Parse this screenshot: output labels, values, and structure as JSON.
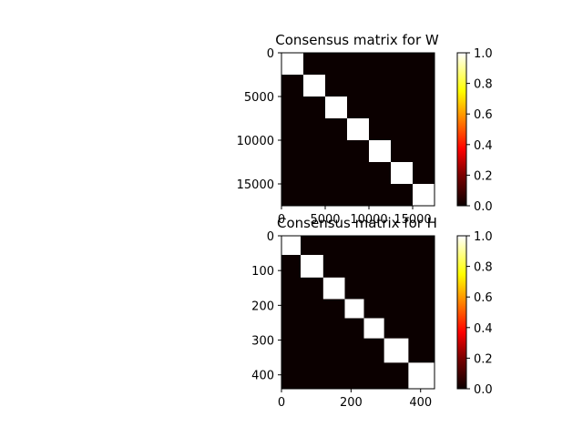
{
  "chart_data": [
    {
      "type": "heatmap",
      "title": "Consensus matrix for W",
      "xlabel": "",
      "ylabel": "",
      "xlim": [
        0,
        17500
      ],
      "ylim": [
        0,
        17500
      ],
      "y_inverted": true,
      "x_ticks": [
        0,
        5000,
        10000,
        15000
      ],
      "y_ticks": [
        0,
        5000,
        10000,
        15000
      ],
      "x_tick_labels": [
        "0",
        "5000",
        "10000",
        "15000"
      ],
      "y_tick_labels": [
        "0",
        "5000",
        "10000",
        "15000"
      ],
      "blocks": [
        {
          "start": 0,
          "end": 2500,
          "value": 1.0
        },
        {
          "start": 2500,
          "end": 5000,
          "value": 1.0
        },
        {
          "start": 5000,
          "end": 7500,
          "value": 1.0
        },
        {
          "start": 7500,
          "end": 10000,
          "value": 1.0
        },
        {
          "start": 10000,
          "end": 12500,
          "value": 1.0
        },
        {
          "start": 12500,
          "end": 15000,
          "value": 1.0
        },
        {
          "start": 15000,
          "end": 17500,
          "value": 1.0
        }
      ],
      "background_value": 0.0,
      "colormap": "hot",
      "colorbar": {
        "range": [
          0.0,
          1.0
        ],
        "ticks": [
          0.0,
          0.2,
          0.4,
          0.6,
          0.8,
          1.0
        ],
        "tick_labels": [
          "0.0",
          "0.2",
          "0.4",
          "0.6",
          "0.8",
          "1.0"
        ]
      },
      "grid": false
    },
    {
      "type": "heatmap",
      "title": "Consensus matrix for H",
      "xlabel": "",
      "ylabel": "",
      "xlim": [
        0,
        440
      ],
      "ylim": [
        0,
        440
      ],
      "y_inverted": true,
      "x_ticks": [
        0,
        200,
        400
      ],
      "y_ticks": [
        0,
        100,
        200,
        300,
        400
      ],
      "x_tick_labels": [
        "0",
        "200",
        "400"
      ],
      "y_tick_labels": [
        "0",
        "100",
        "200",
        "300",
        "400"
      ],
      "blocks": [
        {
          "start": 0,
          "end": 55,
          "value": 1.0
        },
        {
          "start": 55,
          "end": 120,
          "value": 1.0
        },
        {
          "start": 120,
          "end": 182,
          "value": 1.0
        },
        {
          "start": 182,
          "end": 237,
          "value": 1.0
        },
        {
          "start": 237,
          "end": 295,
          "value": 1.0
        },
        {
          "start": 295,
          "end": 365,
          "value": 1.0
        },
        {
          "start": 365,
          "end": 440,
          "value": 1.0
        }
      ],
      "background_value": 0.0,
      "colormap": "hot",
      "colorbar": {
        "range": [
          0.0,
          1.0
        ],
        "ticks": [
          0.0,
          0.2,
          0.4,
          0.6,
          0.8,
          1.0
        ],
        "tick_labels": [
          "0.0",
          "0.2",
          "0.4",
          "0.6",
          "0.8",
          "1.0"
        ]
      },
      "grid": false
    }
  ]
}
